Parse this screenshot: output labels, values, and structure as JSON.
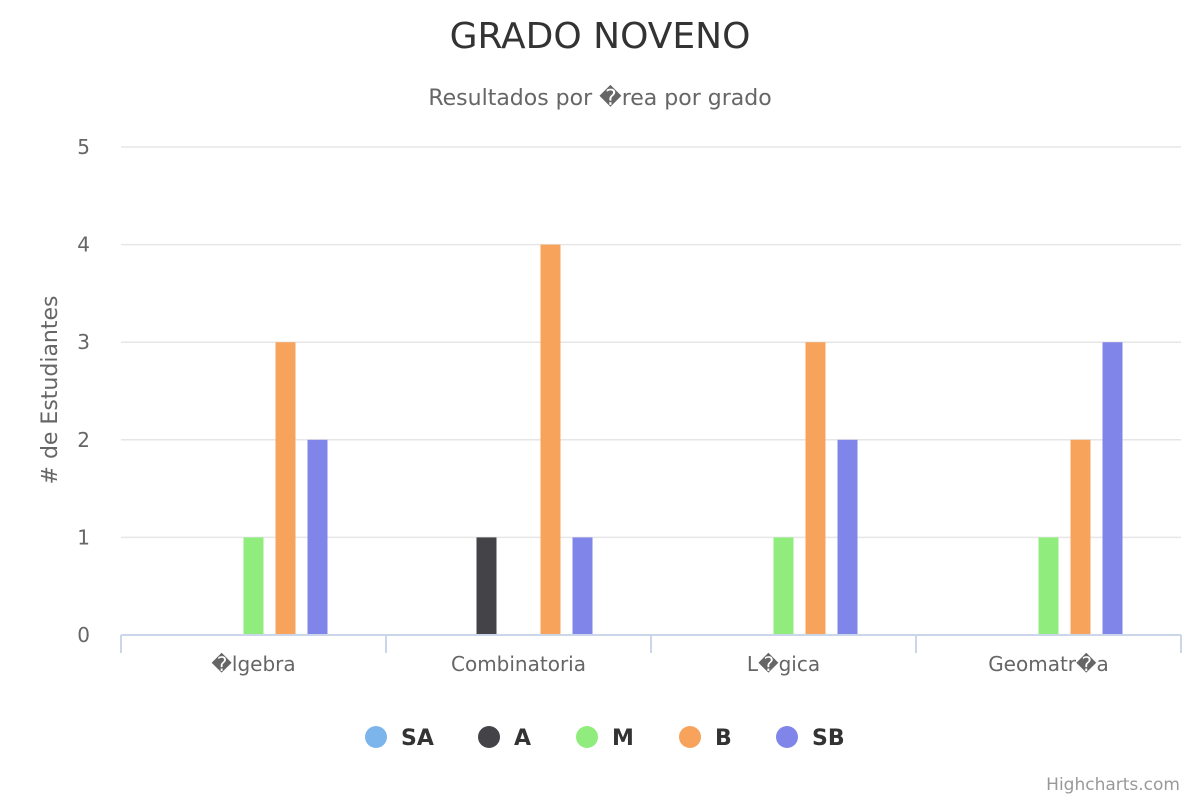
{
  "chart_data": {
    "type": "bar",
    "title": "GRADO NOVENO",
    "subtitle": "Resultados por �rea por grado",
    "xlabel": "",
    "ylabel": "# de Estudiantes",
    "categories": [
      "�lgebra",
      "Combinatoria",
      "L�gica",
      "Geomatr�a"
    ],
    "ylim": [
      0,
      5
    ],
    "yticks": [
      0,
      1,
      2,
      3,
      4,
      5
    ],
    "grid": true,
    "legend_position": "bottom-center",
    "series": [
      {
        "name": "SA",
        "color": "#7cb5ec",
        "values": [
          0,
          0,
          0,
          0
        ]
      },
      {
        "name": "A",
        "color": "#434348",
        "values": [
          0,
          1,
          0,
          0
        ]
      },
      {
        "name": "M",
        "color": "#90ed7d",
        "values": [
          1,
          0,
          1,
          1
        ]
      },
      {
        "name": "B",
        "color": "#f7a35c",
        "values": [
          3,
          4,
          3,
          2
        ]
      },
      {
        "name": "SB",
        "color": "#8085e9",
        "values": [
          2,
          1,
          2,
          3
        ]
      }
    ]
  },
  "credits": "Highcharts.com"
}
